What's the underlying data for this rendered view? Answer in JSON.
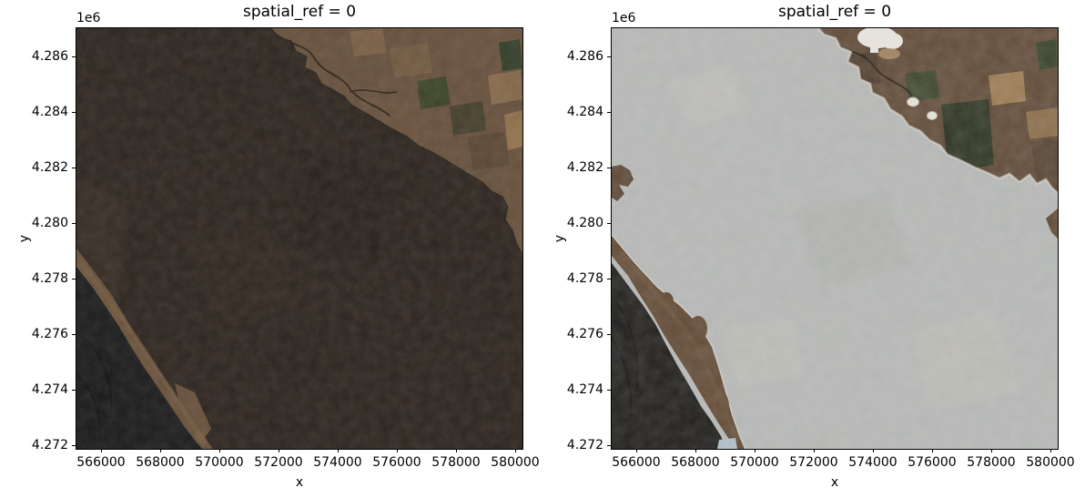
{
  "figure": {
    "background": "#ffffff",
    "text_color": "#000000",
    "plots": [
      {
        "title": "spatial_ref = 0",
        "xlabel": "x",
        "ylabel": "y",
        "offset_text": "1e6",
        "xticks": [
          "566000",
          "568000",
          "570000",
          "572000",
          "574000",
          "576000",
          "578000",
          "580000"
        ],
        "yticks": [
          "4.286",
          "4.284",
          "4.282",
          "4.280",
          "4.278",
          "4.276",
          "4.274",
          "4.272"
        ]
      },
      {
        "title": "spatial_ref = 0",
        "xlabel": "x",
        "ylabel": "y",
        "offset_text": "1e6",
        "xticks": [
          "566000",
          "568000",
          "570000",
          "572000",
          "574000",
          "576000",
          "578000",
          "580000"
        ],
        "yticks": [
          "4.286",
          "4.284",
          "4.282",
          "4.280",
          "4.278",
          "4.276",
          "4.274",
          "4.272"
        ]
      }
    ]
  },
  "palette": {
    "left_image": {
      "burn_scar_dark": "#2b241f",
      "unburned_brown": "#6b5440",
      "field_tan": "#86684b",
      "field_green": "#3c4628",
      "coast_strip": "#6f563e",
      "ocean": "#17191c"
    },
    "right_image": {
      "haze_gray": "#b6b8b7",
      "unburned_brown": "#5e4835",
      "field_tan": "#9a7b53",
      "field_green": "#2a3220",
      "coast_strip": "#5f4733",
      "ocean": "#1b1a18",
      "cloud_white": "#eae7e0",
      "shallow_water_blue": "#aebfca"
    }
  },
  "chart_data": [
    {
      "type": "heatmap",
      "subtype": "satellite_rgb_image",
      "title": "spatial_ref = 0",
      "xlabel": "x",
      "ylabel": "y",
      "y_offset_label": "1e6",
      "xticks": [
        566000,
        568000,
        570000,
        572000,
        574000,
        576000,
        578000,
        580000
      ],
      "yticks": [
        4286000,
        4284000,
        4282000,
        4280000,
        4278000,
        4276000,
        4274000,
        4272000
      ],
      "xlim": [
        565170,
        580250
      ],
      "ylim": [
        4271870,
        4287020
      ],
      "grid": false,
      "legend": null,
      "description": "Dark true-color satellite scene: large dark burn-scar terrain, lighter brown agricultural fields with green patches in top-right, brown coastal strip and near-black ocean in bottom-left."
    },
    {
      "type": "heatmap",
      "subtype": "satellite_rgb_image",
      "title": "spatial_ref = 0",
      "xlabel": "x",
      "ylabel": "y",
      "y_offset_label": "1e6",
      "xticks": [
        566000,
        568000,
        570000,
        572000,
        574000,
        576000,
        578000,
        580000
      ],
      "yticks": [
        4286000,
        4284000,
        4282000,
        4280000,
        4278000,
        4276000,
        4274000,
        4272000
      ],
      "xlim": [
        565170,
        580250
      ],
      "ylim": [
        4271870,
        4287020
      ],
      "grid": false,
      "legend": null,
      "description": "Same scene with interior covered by bright gray haze/smoke; unburned brown terrain with fields and white clouds in top-right, brown coastal band and dark ocean in bottom-left, small pale-blue water patch at bottom edge."
    }
  ]
}
